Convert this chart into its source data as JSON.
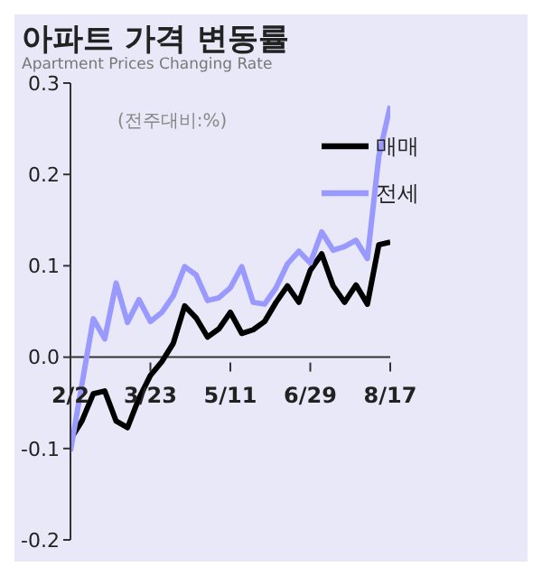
{
  "chart_data": {
    "type": "line",
    "title": "아파트 가격 변동률",
    "subtitle": "Apartment Prices Changing Rate",
    "ylabel": "(전주대비:%)",
    "categories": [
      "2/2",
      null,
      null,
      null,
      null,
      null,
      null,
      "3/23",
      null,
      null,
      null,
      null,
      null,
      null,
      "5/11",
      null,
      null,
      null,
      null,
      null,
      null,
      "6/29",
      null,
      null,
      null,
      null,
      null,
      null,
      "8/17"
    ],
    "series": [
      {
        "name": "매매",
        "color": "#000000",
        "values": [
          -0.09,
          -0.07,
          -0.04,
          -0.037,
          -0.07,
          -0.077,
          -0.045,
          -0.02,
          -0.005,
          0.015,
          0.056,
          0.043,
          0.022,
          0.031,
          0.049,
          0.026,
          0.03,
          0.039,
          0.06,
          0.078,
          0.06,
          0.095,
          0.113,
          0.078,
          0.06,
          0.079,
          0.058,
          0.123,
          0.126
        ]
      },
      {
        "name": "전세",
        "color": "#9999ff",
        "values": [
          -0.103,
          -0.03,
          0.042,
          0.02,
          0.081,
          0.038,
          0.063,
          0.039,
          0.049,
          0.067,
          0.099,
          0.09,
          0.062,
          0.065,
          0.076,
          0.099,
          0.06,
          0.058,
          0.076,
          0.102,
          0.116,
          0.103,
          0.137,
          0.117,
          0.121,
          0.128,
          0.108,
          0.22,
          0.275
        ]
      }
    ],
    "ylim": [
      -0.2,
      0.3
    ],
    "yticks": [
      0.3,
      0.2,
      0.1,
      {
        "value": 0,
        "label": "0.0"
      },
      -0.1,
      -0.2
    ],
    "grid": false,
    "legend": "top right",
    "marker": "none",
    "line_style": "solid"
  }
}
